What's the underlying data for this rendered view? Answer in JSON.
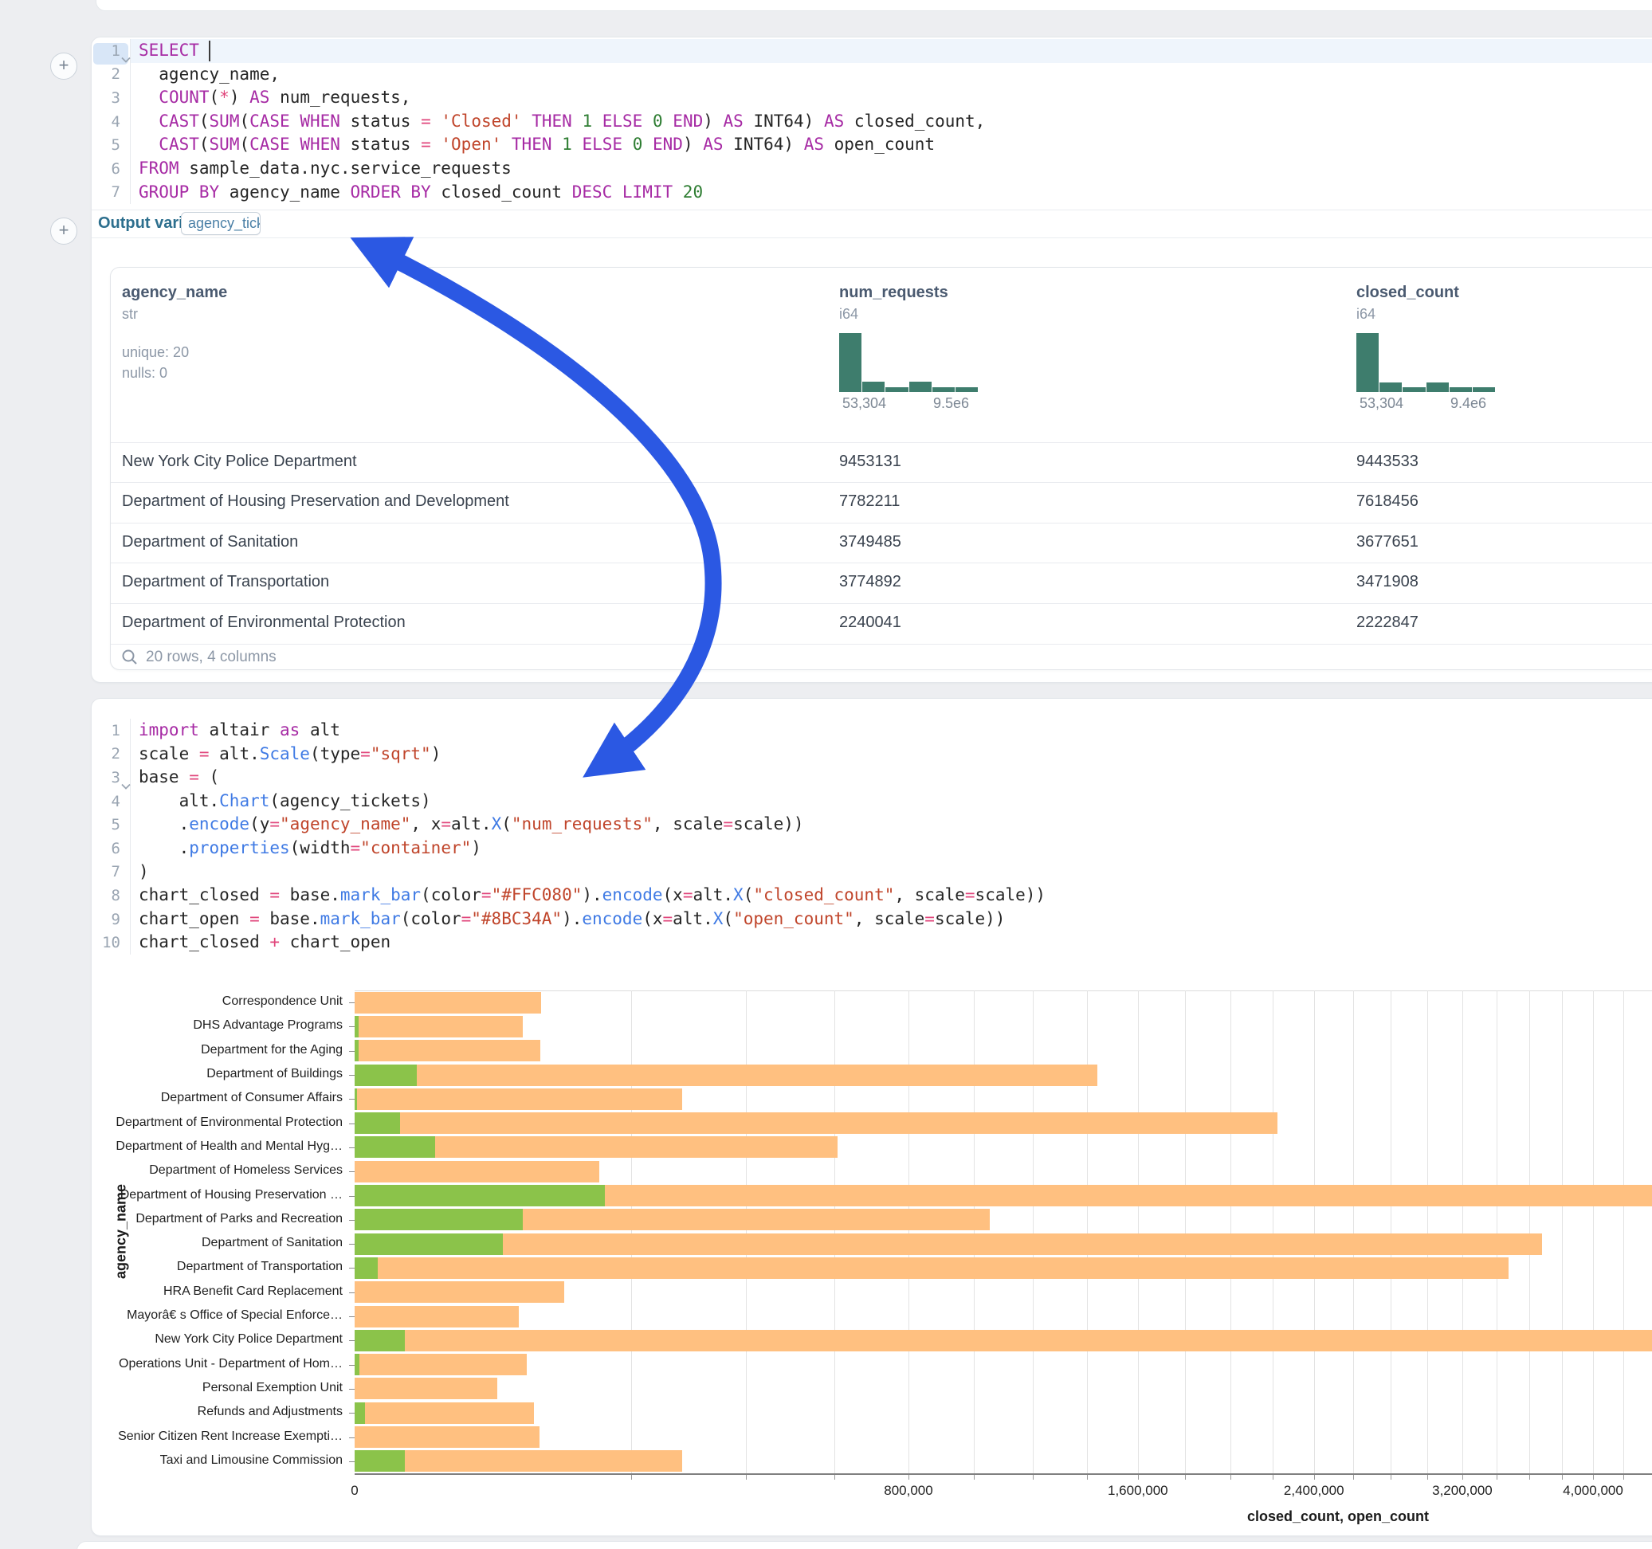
{
  "ui": {
    "insert_buttons": [
      "+",
      "+"
    ],
    "output_bar": {
      "label": "Output variable:",
      "value": "agency_tickets"
    },
    "annotation_arrow": {
      "color": "#2b58e3",
      "meaning": "links output variable to its usage in code"
    }
  },
  "sql_cell": {
    "lines": [
      {
        "n": "1",
        "fold": true,
        "active": true,
        "cursor_after_ch": 7,
        "tokens": [
          {
            "c": "kw",
            "t": "SELECT"
          },
          {
            "c": "t",
            "t": " "
          }
        ]
      },
      {
        "n": "2",
        "tokens": [
          {
            "c": "t",
            "t": "  agency_name,"
          }
        ]
      },
      {
        "n": "3",
        "tokens": [
          {
            "c": "t",
            "t": "  "
          },
          {
            "c": "kw",
            "t": "COUNT"
          },
          {
            "c": "t",
            "t": "("
          },
          {
            "c": "op",
            "t": "*"
          },
          {
            "c": "t",
            "t": ") "
          },
          {
            "c": "kw",
            "t": "AS"
          },
          {
            "c": "t",
            "t": " num_requests,"
          }
        ]
      },
      {
        "n": "4",
        "tokens": [
          {
            "c": "t",
            "t": "  "
          },
          {
            "c": "kw",
            "t": "CAST"
          },
          {
            "c": "t",
            "t": "("
          },
          {
            "c": "kw",
            "t": "SUM"
          },
          {
            "c": "t",
            "t": "("
          },
          {
            "c": "kw",
            "t": "CASE WHEN"
          },
          {
            "c": "t",
            "t": " status "
          },
          {
            "c": "op",
            "t": "="
          },
          {
            "c": "t",
            "t": " "
          },
          {
            "c": "str",
            "t": "'Closed'"
          },
          {
            "c": "t",
            "t": " "
          },
          {
            "c": "kw",
            "t": "THEN"
          },
          {
            "c": "t",
            "t": " "
          },
          {
            "c": "num",
            "t": "1"
          },
          {
            "c": "t",
            "t": " "
          },
          {
            "c": "kw",
            "t": "ELSE"
          },
          {
            "c": "t",
            "t": " "
          },
          {
            "c": "num",
            "t": "0"
          },
          {
            "c": "t",
            "t": " "
          },
          {
            "c": "kw",
            "t": "END"
          },
          {
            "c": "t",
            "t": ") "
          },
          {
            "c": "kw",
            "t": "AS"
          },
          {
            "c": "t",
            "t": " INT64) "
          },
          {
            "c": "kw",
            "t": "AS"
          },
          {
            "c": "t",
            "t": " closed_count,"
          }
        ]
      },
      {
        "n": "5",
        "tokens": [
          {
            "c": "t",
            "t": "  "
          },
          {
            "c": "kw",
            "t": "CAST"
          },
          {
            "c": "t",
            "t": "("
          },
          {
            "c": "kw",
            "t": "SUM"
          },
          {
            "c": "t",
            "t": "("
          },
          {
            "c": "kw",
            "t": "CASE WHEN"
          },
          {
            "c": "t",
            "t": " status "
          },
          {
            "c": "op",
            "t": "="
          },
          {
            "c": "t",
            "t": " "
          },
          {
            "c": "str",
            "t": "'Open'"
          },
          {
            "c": "t",
            "t": " "
          },
          {
            "c": "kw",
            "t": "THEN"
          },
          {
            "c": "t",
            "t": " "
          },
          {
            "c": "num",
            "t": "1"
          },
          {
            "c": "t",
            "t": " "
          },
          {
            "c": "kw",
            "t": "ELSE"
          },
          {
            "c": "t",
            "t": " "
          },
          {
            "c": "num",
            "t": "0"
          },
          {
            "c": "t",
            "t": " "
          },
          {
            "c": "kw",
            "t": "END"
          },
          {
            "c": "t",
            "t": ") "
          },
          {
            "c": "kw",
            "t": "AS"
          },
          {
            "c": "t",
            "t": " INT64) "
          },
          {
            "c": "kw",
            "t": "AS"
          },
          {
            "c": "t",
            "t": " open_count"
          }
        ]
      },
      {
        "n": "6",
        "tokens": [
          {
            "c": "kw",
            "t": "FROM"
          },
          {
            "c": "t",
            "t": " sample_data.nyc.service_requests"
          }
        ]
      },
      {
        "n": "7",
        "tokens": [
          {
            "c": "kw",
            "t": "GROUP BY"
          },
          {
            "c": "t",
            "t": " agency_name "
          },
          {
            "c": "kw",
            "t": "ORDER BY"
          },
          {
            "c": "t",
            "t": " closed_count "
          },
          {
            "c": "kw",
            "t": "DESC LIMIT"
          },
          {
            "c": "t",
            "t": " "
          },
          {
            "c": "num",
            "t": "20"
          }
        ]
      }
    ]
  },
  "table": {
    "columns": [
      {
        "name": "agency_name",
        "type": "str",
        "stats": [
          "unique: 20",
          "nulls: 0"
        ]
      },
      {
        "name": "num_requests",
        "type": "i64",
        "histogram": [
          1,
          0.176,
          0.081,
          0.176,
          0.081,
          0.081
        ],
        "hist_min": "53,304",
        "hist_max": "9.5e6"
      },
      {
        "name": "closed_count",
        "type": "i64",
        "histogram": [
          1,
          0.162,
          0.081,
          0.162,
          0.081,
          0.081
        ],
        "hist_min": "53,304",
        "hist_max": "9.4e6"
      }
    ],
    "rows": [
      [
        "New York City Police Department",
        "9453131",
        "9443533"
      ],
      [
        "Department of Housing Preservation and Development",
        "7782211",
        "7618456"
      ],
      [
        "Department of Sanitation",
        "3749485",
        "3677651"
      ],
      [
        "Department of Transportation",
        "3774892",
        "3471908"
      ],
      [
        "Department of Environmental Protection",
        "2240041",
        "2222847"
      ]
    ],
    "footer": "20 rows, 4 columns",
    "footer_icon": "search-icon",
    "histogram_color": "#3e7d6d"
  },
  "python_cell": {
    "lines": [
      {
        "n": "1",
        "tokens": [
          {
            "c": "kw",
            "t": "import"
          },
          {
            "c": "t",
            "t": " altair "
          },
          {
            "c": "kw",
            "t": "as"
          },
          {
            "c": "t",
            "t": " alt"
          }
        ]
      },
      {
        "n": "2",
        "tokens": [
          {
            "c": "t",
            "t": "scale "
          },
          {
            "c": "op",
            "t": "="
          },
          {
            "c": "t",
            "t": " alt."
          },
          {
            "c": "fn",
            "t": "Scale"
          },
          {
            "c": "t",
            "t": "(type"
          },
          {
            "c": "op",
            "t": "="
          },
          {
            "c": "str",
            "t": "\"sqrt\""
          },
          {
            "c": "t",
            "t": ")"
          }
        ]
      },
      {
        "n": "3",
        "fold": true,
        "tokens": [
          {
            "c": "t",
            "t": "base "
          },
          {
            "c": "op",
            "t": "="
          },
          {
            "c": "t",
            "t": " ("
          }
        ]
      },
      {
        "n": "4",
        "tokens": [
          {
            "c": "t",
            "t": "    alt."
          },
          {
            "c": "fn",
            "t": "Chart"
          },
          {
            "c": "t",
            "t": "(agency_tickets)"
          }
        ]
      },
      {
        "n": "5",
        "tokens": [
          {
            "c": "t",
            "t": "    ."
          },
          {
            "c": "fn",
            "t": "encode"
          },
          {
            "c": "t",
            "t": "(y"
          },
          {
            "c": "op",
            "t": "="
          },
          {
            "c": "str",
            "t": "\"agency_name\""
          },
          {
            "c": "t",
            "t": ", x"
          },
          {
            "c": "op",
            "t": "="
          },
          {
            "c": "t",
            "t": "alt."
          },
          {
            "c": "fn",
            "t": "X"
          },
          {
            "c": "t",
            "t": "("
          },
          {
            "c": "str",
            "t": "\"num_requests\""
          },
          {
            "c": "t",
            "t": ", scale"
          },
          {
            "c": "op",
            "t": "="
          },
          {
            "c": "t",
            "t": "scale))"
          }
        ]
      },
      {
        "n": "6",
        "tokens": [
          {
            "c": "t",
            "t": "    ."
          },
          {
            "c": "fn",
            "t": "properties"
          },
          {
            "c": "t",
            "t": "(width"
          },
          {
            "c": "op",
            "t": "="
          },
          {
            "c": "str",
            "t": "\"container\""
          },
          {
            "c": "t",
            "t": ")"
          }
        ]
      },
      {
        "n": "7",
        "tokens": [
          {
            "c": "t",
            "t": ")"
          }
        ]
      },
      {
        "n": "8",
        "tokens": [
          {
            "c": "t",
            "t": "chart_closed "
          },
          {
            "c": "op",
            "t": "="
          },
          {
            "c": "t",
            "t": " base."
          },
          {
            "c": "fn",
            "t": "mark_bar"
          },
          {
            "c": "t",
            "t": "(color"
          },
          {
            "c": "op",
            "t": "="
          },
          {
            "c": "str",
            "t": "\"#FFC080\""
          },
          {
            "c": "t",
            "t": ")."
          },
          {
            "c": "fn",
            "t": "encode"
          },
          {
            "c": "t",
            "t": "(x"
          },
          {
            "c": "op",
            "t": "="
          },
          {
            "c": "t",
            "t": "alt."
          },
          {
            "c": "fn",
            "t": "X"
          },
          {
            "c": "t",
            "t": "("
          },
          {
            "c": "str",
            "t": "\"closed_count\""
          },
          {
            "c": "t",
            "t": ", scale"
          },
          {
            "c": "op",
            "t": "="
          },
          {
            "c": "t",
            "t": "scale))"
          }
        ]
      },
      {
        "n": "9",
        "tokens": [
          {
            "c": "t",
            "t": "chart_open "
          },
          {
            "c": "op",
            "t": "="
          },
          {
            "c": "t",
            "t": " base."
          },
          {
            "c": "fn",
            "t": "mark_bar"
          },
          {
            "c": "t",
            "t": "(color"
          },
          {
            "c": "op",
            "t": "="
          },
          {
            "c": "str",
            "t": "\"#8BC34A\""
          },
          {
            "c": "t",
            "t": ")."
          },
          {
            "c": "fn",
            "t": "encode"
          },
          {
            "c": "t",
            "t": "(x"
          },
          {
            "c": "op",
            "t": "="
          },
          {
            "c": "t",
            "t": "alt."
          },
          {
            "c": "fn",
            "t": "X"
          },
          {
            "c": "t",
            "t": "("
          },
          {
            "c": "str",
            "t": "\"open_count\""
          },
          {
            "c": "t",
            "t": ", scale"
          },
          {
            "c": "op",
            "t": "="
          },
          {
            "c": "t",
            "t": "scale))"
          }
        ]
      },
      {
        "n": "10",
        "tokens": [
          {
            "c": "t",
            "t": "chart_closed "
          },
          {
            "c": "op",
            "t": "+"
          },
          {
            "c": "t",
            "t": " chart_open"
          }
        ]
      }
    ]
  },
  "chart_data": {
    "type": "bar",
    "orientation": "horizontal",
    "x_scale": "sqrt",
    "xlabel": "closed_count, open_count",
    "ylabel": "agency_name",
    "grid": true,
    "gridline_step": 200000,
    "x_ticks": {
      "values": [
        0,
        800000,
        1600000,
        2400000,
        3200000,
        4000000
      ],
      "labels": [
        "0",
        "800,000",
        "1,600,000",
        "2,400,000",
        "3,200,000",
        "4,000,000"
      ]
    },
    "categories": [
      "Correspondence Unit",
      "DHS Advantage Programs",
      "Department for the Aging",
      "Department of Buildings",
      "Department of Consumer Affairs",
      "Department of Environmental Protection",
      "Department of Health and Mental Hyg…",
      "Department of Homeless Services",
      "Department of Housing Preservation …",
      "Department of Parks and Recreation",
      "Department of Sanitation",
      "Department of Transportation",
      "HRA Benefit Card Replacement",
      "Mayorâ€ s Office of Special Enforce…",
      "New York City Police Department",
      "Operations Unit - Department of Hom…",
      "Personal Exemption Unit",
      "Refunds and Adjustments",
      "Senior Citizen Rent Increase Exempti…",
      "Taxi and Limousine Commission"
    ],
    "series": [
      {
        "name": "closed_count",
        "color": "#FFC080",
        "values": [
          91000,
          74000,
          90000,
          1440000,
          280000,
          2222847,
          608000,
          156000,
          7618456,
          1051000,
          3677651,
          3471908,
          115000,
          70000,
          9443533,
          77000,
          53304,
          84000,
          89000,
          280000
        ]
      },
      {
        "name": "open_count",
        "color": "#8BC34A",
        "values": [
          0,
          40,
          40,
          10200,
          15,
          5400,
          16900,
          0,
          163755,
          74000,
          57000,
          1350,
          0,
          0,
          6500,
          60,
          0,
          300,
          0,
          6500
        ]
      }
    ]
  }
}
